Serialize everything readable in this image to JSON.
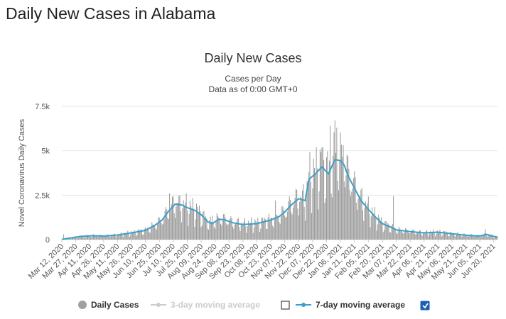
{
  "page": {
    "heading": "Daily New Cases in Alabama"
  },
  "chart_data": {
    "type": "bar",
    "title": "Daily New Cases",
    "subtitle_lines": [
      "Cases per Day",
      "Data as of 0:00 GMT+0"
    ],
    "ylabel": "Novel Coronavirus Daily Cases",
    "xlabel": "",
    "ylim": [
      0,
      7500
    ],
    "y_ticks": [
      0,
      2500,
      5000,
      7500
    ],
    "y_tick_labels": [
      "0",
      "2.5k",
      "5k",
      "7.5k"
    ],
    "x_start_date": "2020-03-12",
    "x_end_date": "2021-06-24",
    "x_tick_labels": [
      "Mar 12, 2020",
      "Mar 27, 2020",
      "Apr 11, 2020",
      "Apr 26, 2020",
      "May 11, 2020",
      "May 26, 2020",
      "Jun 10, 2020",
      "Jun 25, 2020",
      "Jul 10, 2020",
      "Jul 25, 2020",
      "Aug 09, 2020",
      "Aug 24, 2020",
      "Sep 08, 2020",
      "Sep 23, 2020",
      "Oct 08, 2020",
      "Oct 23, 2020",
      "Nov 07, 2020",
      "Nov 22, 2020",
      "Dec 07, 2020",
      "Dec 22, 2020",
      "Jan 06, 2021",
      "Jan 21, 2021",
      "Feb 05, 2021",
      "Feb 20, 2021",
      "Mar 07, 2021",
      "Mar 22, 2021",
      "Apr 06, 2021",
      "Apr 21, 2021",
      "May 06, 2021",
      "May 21, 2021",
      "Jun 05, 2021",
      "Jun 20, 2021"
    ],
    "x_tick_dates": [
      "2020-03-12",
      "2020-03-27",
      "2020-04-11",
      "2020-04-26",
      "2020-05-11",
      "2020-05-26",
      "2020-06-10",
      "2020-06-25",
      "2020-07-10",
      "2020-07-25",
      "2020-08-09",
      "2020-08-24",
      "2020-09-08",
      "2020-09-23",
      "2020-10-08",
      "2020-10-23",
      "2020-11-07",
      "2020-11-22",
      "2020-12-07",
      "2020-12-22",
      "2021-01-06",
      "2021-01-21",
      "2021-02-05",
      "2021-02-20",
      "2021-03-07",
      "2021-03-22",
      "2021-04-06",
      "2021-04-21",
      "2021-05-06",
      "2021-05-21",
      "2021-06-05",
      "2021-06-20"
    ],
    "moving_average_7day": [
      {
        "date": "2020-03-12",
        "value": 10
      },
      {
        "date": "2020-03-20",
        "value": 80
      },
      {
        "date": "2020-04-01",
        "value": 180
      },
      {
        "date": "2020-04-15",
        "value": 220
      },
      {
        "date": "2020-04-26",
        "value": 200
      },
      {
        "date": "2020-05-11",
        "value": 260
      },
      {
        "date": "2020-05-26",
        "value": 380
      },
      {
        "date": "2020-06-10",
        "value": 520
      },
      {
        "date": "2020-06-20",
        "value": 800
      },
      {
        "date": "2020-06-28",
        "value": 1100
      },
      {
        "date": "2020-07-05",
        "value": 1600
      },
      {
        "date": "2020-07-12",
        "value": 2000
      },
      {
        "date": "2020-07-19",
        "value": 1950
      },
      {
        "date": "2020-07-25",
        "value": 1800
      },
      {
        "date": "2020-08-02",
        "value": 1650
      },
      {
        "date": "2020-08-09",
        "value": 1400
      },
      {
        "date": "2020-08-16",
        "value": 1000
      },
      {
        "date": "2020-08-21",
        "value": 900
      },
      {
        "date": "2020-08-28",
        "value": 1150
      },
      {
        "date": "2020-09-04",
        "value": 1100
      },
      {
        "date": "2020-09-12",
        "value": 950
      },
      {
        "date": "2020-09-23",
        "value": 850
      },
      {
        "date": "2020-10-08",
        "value": 900
      },
      {
        "date": "2020-10-23",
        "value": 1100
      },
      {
        "date": "2020-11-01",
        "value": 1300
      },
      {
        "date": "2020-11-07",
        "value": 1550
      },
      {
        "date": "2020-11-15",
        "value": 2000
      },
      {
        "date": "2020-11-22",
        "value": 2300
      },
      {
        "date": "2020-11-29",
        "value": 2200
      },
      {
        "date": "2020-12-03",
        "value": 3400
      },
      {
        "date": "2020-12-10",
        "value": 3700
      },
      {
        "date": "2020-12-17",
        "value": 4100
      },
      {
        "date": "2020-12-24",
        "value": 3700
      },
      {
        "date": "2020-12-31",
        "value": 4500
      },
      {
        "date": "2021-01-06",
        "value": 4450
      },
      {
        "date": "2021-01-10",
        "value": 4200
      },
      {
        "date": "2021-01-14",
        "value": 3600
      },
      {
        "date": "2021-01-21",
        "value": 2900
      },
      {
        "date": "2021-01-28",
        "value": 2200
      },
      {
        "date": "2021-02-05",
        "value": 1700
      },
      {
        "date": "2021-02-12",
        "value": 1300
      },
      {
        "date": "2021-02-20",
        "value": 900
      },
      {
        "date": "2021-02-27",
        "value": 750
      },
      {
        "date": "2021-03-07",
        "value": 550
      },
      {
        "date": "2021-03-22",
        "value": 450
      },
      {
        "date": "2021-04-06",
        "value": 380
      },
      {
        "date": "2021-04-21",
        "value": 420
      },
      {
        "date": "2021-05-06",
        "value": 330
      },
      {
        "date": "2021-05-21",
        "value": 250
      },
      {
        "date": "2021-06-05",
        "value": 200
      },
      {
        "date": "2021-06-12",
        "value": 300
      },
      {
        "date": "2021-06-20",
        "value": 180
      },
      {
        "date": "2021-06-24",
        "value": 150
      }
    ],
    "daily_spikes": [
      {
        "date": "2020-03-14",
        "value": 300
      },
      {
        "date": "2020-07-06",
        "value": 2600
      },
      {
        "date": "2020-07-17",
        "value": 2500
      },
      {
        "date": "2020-08-21",
        "value": 1350
      },
      {
        "date": "2020-10-28",
        "value": 2200
      },
      {
        "date": "2020-11-20",
        "value": 2800
      },
      {
        "date": "2020-12-17",
        "value": 5200
      },
      {
        "date": "2020-12-26",
        "value": 6400
      },
      {
        "date": "2020-12-31",
        "value": 6700
      },
      {
        "date": "2021-01-02",
        "value": 6300
      },
      {
        "date": "2021-01-09",
        "value": 5300
      },
      {
        "date": "2021-03-04",
        "value": 2450
      },
      {
        "date": "2021-06-11",
        "value": 580
      }
    ],
    "legend": [
      {
        "label": "Daily Cases",
        "color": "#a0a0a0",
        "enabled": true
      },
      {
        "label": "3-day moving average",
        "color": "#cccccc",
        "enabled": false
      },
      {
        "label": "7-day moving average",
        "color": "#3aa0c8",
        "enabled": true
      }
    ],
    "colors": {
      "bars": "#999999",
      "line": "#3aa0c8",
      "grid": "#e6e6e6",
      "checkbox": "#1a5fb4"
    },
    "grid": true,
    "legend_position": "bottom"
  }
}
